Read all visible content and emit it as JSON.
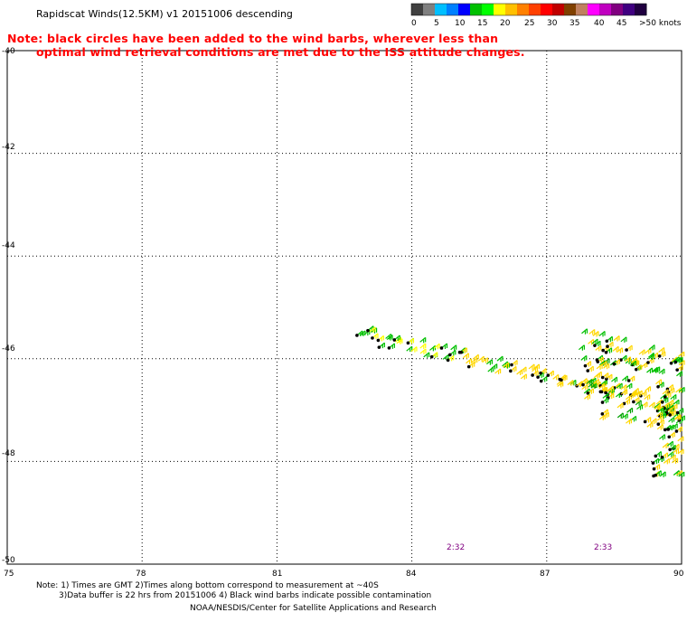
{
  "title": "Rapidscat Winds(12.5KM) v1 20151006 descending",
  "note_line1": "Note: black circles have been added to the wind barbs, wherever less than",
  "note_line2": "optimal wind retrieval conditions are met due to the ISS attitude changes.",
  "legend": {
    "labels": [
      "0",
      "5",
      "10",
      "15",
      "20",
      "25",
      "30",
      "35",
      "40",
      "45",
      ">50 knots"
    ],
    "colors": [
      "#404040",
      "#808080",
      "#00bfff",
      "#0080ff",
      "#0000ff",
      "#00c000",
      "#00ff00",
      "#ffff00",
      "#ffc000",
      "#ff8000",
      "#ff4000",
      "#ff0000",
      "#c00000",
      "#804000",
      "#c08060",
      "#ff00ff",
      "#c000c0",
      "#800080",
      "#400080",
      "#200040"
    ]
  },
  "y_axis_labels": [
    "-40",
    "-42",
    "-44",
    "-46",
    "-48",
    "-50"
  ],
  "x_axis_labels": [
    "75",
    "78",
    "81",
    "84",
    "87",
    "90"
  ],
  "times": [
    "2:32",
    "2:33"
  ],
  "footer": {
    "line1": "Note: 1) Times are GMT 2)Times along bottom correspond to measurement at ~40S",
    "line2": "3)Data buffer is 22 hrs from 20151006 4) Black wind barbs indicate possible contamination",
    "line3": "NOAA/NESDIS/Center for Satellite Applications and Research"
  },
  "map": {
    "lon_range": [
      75,
      90
    ],
    "lat_range": [
      -40,
      -50
    ],
    "grid": true
  }
}
